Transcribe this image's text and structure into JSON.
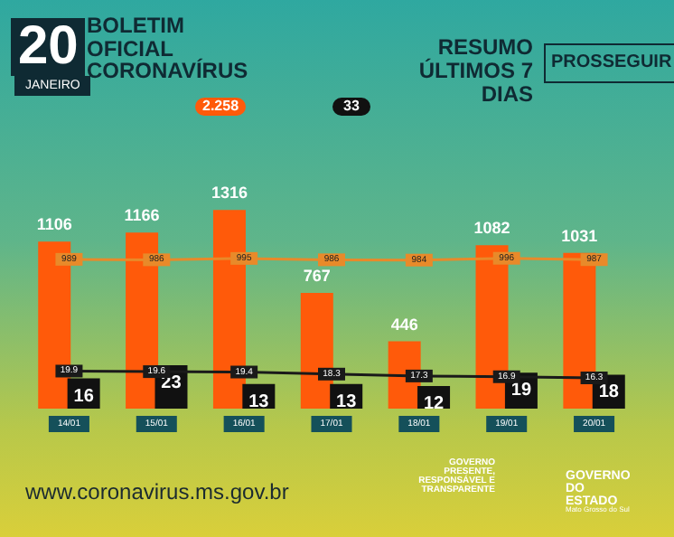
{
  "chart_data": {
    "type": "bar",
    "title": "BOLETIM OFICIAL CORONAVÍRUS",
    "subtitle": "RESUMO ÚLTIMOS 7 DIAS",
    "annotations": [
      "20",
      "JANEIRO",
      "PROSSEGUIR",
      "2.258",
      "33",
      "www.coronavirus.ms.gov.br",
      "GOVERNO PRESENTE, RESPONSÁVEL E TRANSPARENTE",
      "GOVERNO DO ESTADO",
      "Mato Grosso do Sul"
    ],
    "categories": [
      "14/01",
      "15/01",
      "16/01",
      "17/01",
      "18/01",
      "19/01",
      "20/01"
    ],
    "series": [
      {
        "color": "#ff5a0a",
        "values": [
          1106,
          1166,
          1316,
          767,
          446,
          1082,
          1031
        ]
      },
      {
        "type": "line",
        "color": "#e88a2a",
        "values": [
          989,
          986,
          995,
          986,
          984,
          996,
          987
        ]
      },
      {
        "type": "bar",
        "axis": "y2",
        "color": "#111111",
        "values": [
          16,
          23,
          13,
          13,
          12,
          19,
          18
        ]
      },
      {
        "type": "line",
        "axis": "y2",
        "color": "#1a1a1a",
        "values": [
          19.9,
          19.6,
          19.4,
          18.3,
          17.3,
          16.9,
          16.3
        ]
      }
    ],
    "tick_labels": "x",
    "data_labels": true,
    "marker": "square"
  }
}
